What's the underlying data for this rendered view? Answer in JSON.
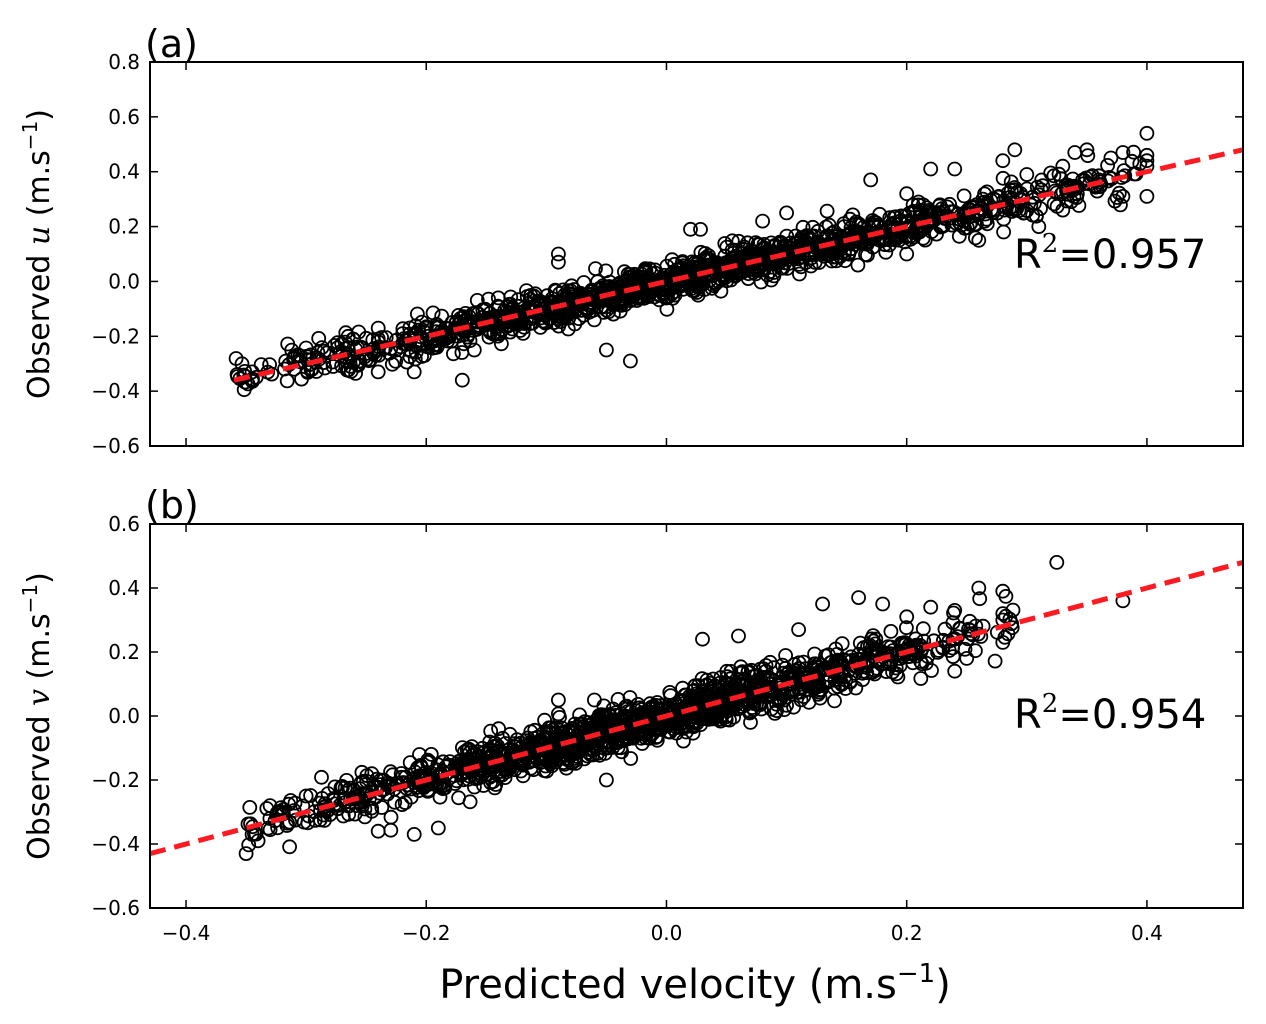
{
  "chart_data": [
    {
      "type": "scatter",
      "panel_label": "(a)",
      "ylabel_pre": "Observed ",
      "ylabel_var": "u",
      "ylabel_unit": " (m.s",
      "ylabel_exp": "−1",
      "ylabel_close": ")",
      "r2_base": "R",
      "r2_exp": "2",
      "r2_value": "=0.957",
      "xlim": [
        -0.43,
        0.48
      ],
      "ylim": [
        -0.6,
        0.8
      ],
      "yticks": [
        -0.6,
        -0.4,
        -0.2,
        0.0,
        0.2,
        0.4,
        0.6,
        0.8
      ],
      "ytick_labels": [
        "−0.6",
        "−0.4",
        "−0.2",
        "0.0",
        "0.2",
        "0.4",
        "0.6",
        "0.8"
      ],
      "xticks": [
        -0.4,
        -0.2,
        0.0,
        0.2,
        0.4
      ],
      "fit_line": {
        "x": [
          -0.36,
          0.48
        ],
        "y": [
          -0.36,
          0.48
        ],
        "color": "#ff1a22"
      },
      "scatter_generator": {
        "x_min": -0.36,
        "x_max": 0.4,
        "n": 1400,
        "noise_sd": 0.035,
        "seed": 11
      },
      "outliers": [
        [
          -0.345,
          -0.33
        ],
        [
          -0.345,
          -0.36
        ],
        [
          -0.31,
          -0.28
        ],
        [
          -0.31,
          -0.32
        ],
        [
          -0.265,
          -0.2
        ],
        [
          -0.24,
          -0.17
        ],
        [
          -0.24,
          -0.22
        ],
        [
          -0.24,
          -0.33
        ],
        [
          -0.21,
          -0.33
        ],
        [
          -0.2,
          -0.17
        ],
        [
          -0.17,
          -0.36
        ],
        [
          -0.16,
          -0.25
        ],
        [
          -0.14,
          -0.06
        ],
        [
          -0.09,
          0.1
        ],
        [
          -0.09,
          0.07
        ],
        [
          -0.05,
          -0.25
        ],
        [
          -0.03,
          -0.29
        ],
        [
          0.02,
          0.19
        ],
        [
          0.08,
          0.22
        ],
        [
          0.1,
          0.25
        ],
        [
          0.17,
          0.37
        ],
        [
          0.2,
          0.32
        ],
        [
          0.22,
          0.41
        ],
        [
          0.24,
          0.41
        ],
        [
          0.26,
          0.15
        ],
        [
          0.28,
          0.44
        ],
        [
          0.29,
          0.48
        ],
        [
          0.3,
          0.39
        ],
        [
          0.31,
          0.2
        ],
        [
          0.33,
          0.42
        ],
        [
          0.34,
          0.47
        ],
        [
          0.35,
          0.48
        ],
        [
          0.36,
          0.37
        ],
        [
          0.37,
          0.45
        ],
        [
          0.38,
          0.47
        ],
        [
          0.4,
          0.54
        ],
        [
          0.4,
          0.46
        ],
        [
          0.4,
          0.44
        ],
        [
          0.4,
          0.42
        ],
        [
          0.4,
          0.31
        ],
        [
          0.38,
          0.31
        ],
        [
          0.33,
          0.26
        ],
        [
          0.2,
          0.1
        ]
      ]
    },
    {
      "type": "scatter",
      "panel_label": "(b)",
      "ylabel_pre": "Observed ",
      "ylabel_var": "v",
      "ylabel_unit": " (m.s",
      "ylabel_exp": "−1",
      "ylabel_close": ")",
      "r2_base": "R",
      "r2_exp": "2",
      "r2_value": "=0.954",
      "xlim": [
        -0.43,
        0.48
      ],
      "ylim": [
        -0.6,
        0.6
      ],
      "yticks": [
        -0.6,
        -0.4,
        -0.2,
        0.0,
        0.2,
        0.4,
        0.6
      ],
      "ytick_labels": [
        "−0.6",
        "−0.4",
        "−0.2",
        "0.0",
        "0.2",
        "0.4",
        "0.6"
      ],
      "xticks": [
        -0.4,
        -0.2,
        0.0,
        0.2,
        0.4
      ],
      "xtick_labels": [
        "−0.4",
        "−0.2",
        "0.0",
        "0.2",
        "0.4"
      ],
      "xlabel_pre": "Predicted velocity (m.s",
      "xlabel_exp": "−1",
      "xlabel_close": ")",
      "fit_line": {
        "x": [
          -0.43,
          0.48
        ],
        "y": [
          -0.43,
          0.48
        ],
        "color": "#ff1a22"
      },
      "scatter_generator": {
        "x_min": -0.35,
        "x_max": 0.29,
        "n": 1400,
        "noise_sd": 0.035,
        "seed": 23
      },
      "outliers": [
        [
          -0.35,
          -0.43
        ],
        [
          -0.345,
          -0.37
        ],
        [
          -0.34,
          -0.39
        ],
        [
          -0.33,
          -0.28
        ],
        [
          -0.32,
          -0.3
        ],
        [
          -0.3,
          -0.25
        ],
        [
          -0.27,
          -0.22
        ],
        [
          -0.24,
          -0.36
        ],
        [
          -0.21,
          -0.37
        ],
        [
          -0.19,
          -0.35
        ],
        [
          -0.09,
          0.05
        ],
        [
          -0.06,
          0.05
        ],
        [
          -0.05,
          -0.2
        ],
        [
          0.03,
          0.24
        ],
        [
          0.06,
          0.25
        ],
        [
          0.07,
          -0.02
        ],
        [
          0.11,
          0.27
        ],
        [
          0.13,
          0.35
        ],
        [
          0.16,
          0.37
        ],
        [
          0.18,
          0.35
        ],
        [
          0.2,
          0.31
        ],
        [
          0.22,
          0.34
        ],
        [
          0.24,
          0.33
        ],
        [
          0.26,
          0.4
        ],
        [
          0.28,
          0.39
        ],
        [
          0.28,
          0.32
        ],
        [
          0.28,
          0.3
        ],
        [
          0.28,
          0.23
        ],
        [
          0.325,
          0.48
        ],
        [
          0.38,
          0.36
        ],
        [
          0.25,
          0.18
        ],
        [
          0.24,
          0.14
        ]
      ]
    }
  ]
}
